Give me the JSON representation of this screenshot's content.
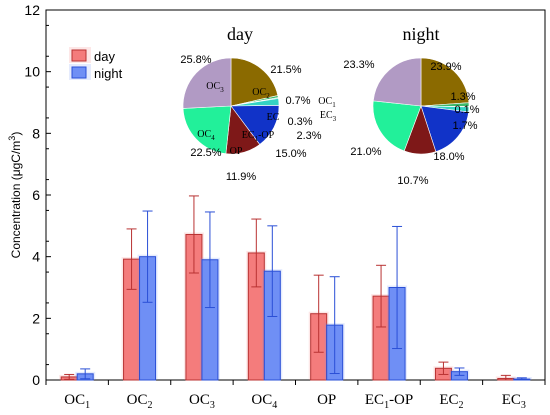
{
  "chart_data": [
    {
      "type": "bar",
      "ylabel": "Concentration (μgC/m³)",
      "ylim": [
        0,
        12
      ],
      "yticks": [
        0,
        2,
        4,
        6,
        8,
        10,
        12
      ],
      "categories": [
        {
          "base": "OC",
          "sub": "1",
          "suffix": ""
        },
        {
          "base": "OC",
          "sub": "2",
          "suffix": ""
        },
        {
          "base": "OC",
          "sub": "3",
          "suffix": ""
        },
        {
          "base": "OC",
          "sub": "4",
          "suffix": ""
        },
        {
          "base": "OP",
          "sub": "",
          "suffix": ""
        },
        {
          "base": "EC",
          "sub": "1",
          "suffix": "-OP"
        },
        {
          "base": "EC",
          "sub": "2",
          "suffix": ""
        },
        {
          "base": "EC",
          "sub": "3",
          "suffix": ""
        }
      ],
      "series": [
        {
          "name": "day",
          "color": "#f47c7c",
          "edge": "#b83232",
          "values": [
            0.1,
            3.92,
            4.72,
            4.12,
            2.15,
            2.72,
            0.38,
            0.05
          ],
          "errors": [
            0.08,
            0.98,
            1.25,
            1.1,
            1.25,
            1.0,
            0.2,
            0.1
          ]
        },
        {
          "name": "night",
          "color": "#6f8ff5",
          "edge": "#2a4fd6",
          "values": [
            0.2,
            4.0,
            3.9,
            3.53,
            1.78,
            3.0,
            0.27,
            0.03
          ],
          "errors": [
            0.16,
            1.48,
            1.55,
            1.47,
            1.57,
            1.98,
            0.12,
            0.04
          ]
        }
      ],
      "legend": {
        "position": "top-left",
        "labels": [
          "day",
          "night"
        ]
      }
    },
    {
      "type": "pie",
      "title": "day",
      "slices": [
        {
          "label": "OC2",
          "value": 21.5,
          "color": "#8b6a00"
        },
        {
          "label": "OC1",
          "value": 0.7,
          "color": "#3db86b"
        },
        {
          "label": "EC3",
          "value": 0.3,
          "color": "#3fd6d6"
        },
        {
          "label": "EC2",
          "value": 2.3,
          "color": "#34d3c4"
        },
        {
          "label": "EC1-OP",
          "value": 15.0,
          "color": "#1133c8"
        },
        {
          "label": "OP",
          "value": 11.9,
          "color": "#7e1818"
        },
        {
          "label": "OC4",
          "value": 22.5,
          "color": "#22f09a"
        },
        {
          "label": "OC3",
          "value": 25.8,
          "color": "#b19ac4"
        }
      ],
      "percent_labels": [
        "21.5%",
        "0.7%",
        "0.3%",
        "2.3%",
        "15.0%",
        "11.9%",
        "22.5%",
        "25.8%"
      ],
      "inner_labels": [
        {
          "base": "OC",
          "sub": "2",
          "suffix": ""
        },
        {
          "base": "OC",
          "sub": "1",
          "suffix": ""
        },
        {
          "base": "EC",
          "sub": "3",
          "suffix": ""
        },
        {
          "base": "EC",
          "sub": "",
          "suffix": ""
        },
        {
          "base": "EC",
          "sub": "1",
          "suffix": "-OP"
        },
        {
          "base": "OP",
          "sub": "",
          "suffix": ""
        },
        {
          "base": "OC",
          "sub": "4",
          "suffix": ""
        },
        {
          "base": "OC",
          "sub": "3",
          "suffix": ""
        }
      ]
    },
    {
      "type": "pie",
      "title": "night",
      "slices": [
        {
          "label": "OC2",
          "value": 23.9,
          "color": "#8b6a00"
        },
        {
          "label": "OC1",
          "value": 1.3,
          "color": "#3db86b"
        },
        {
          "label": "EC3",
          "value": 0.1,
          "color": "#3fd6d6"
        },
        {
          "label": "EC2",
          "value": 1.7,
          "color": "#34d3c4"
        },
        {
          "label": "EC1-OP",
          "value": 18.0,
          "color": "#1133c8"
        },
        {
          "label": "OP",
          "value": 10.7,
          "color": "#7e1818"
        },
        {
          "label": "OC4",
          "value": 21.0,
          "color": "#22f09a"
        },
        {
          "label": "OC3",
          "value": 23.3,
          "color": "#b19ac4"
        }
      ],
      "percent_labels": [
        "23.9%",
        "1.3%",
        "0.1%",
        "1.7%",
        "18.0%",
        "10.7%",
        "21.0%",
        "23.3%"
      ]
    }
  ]
}
